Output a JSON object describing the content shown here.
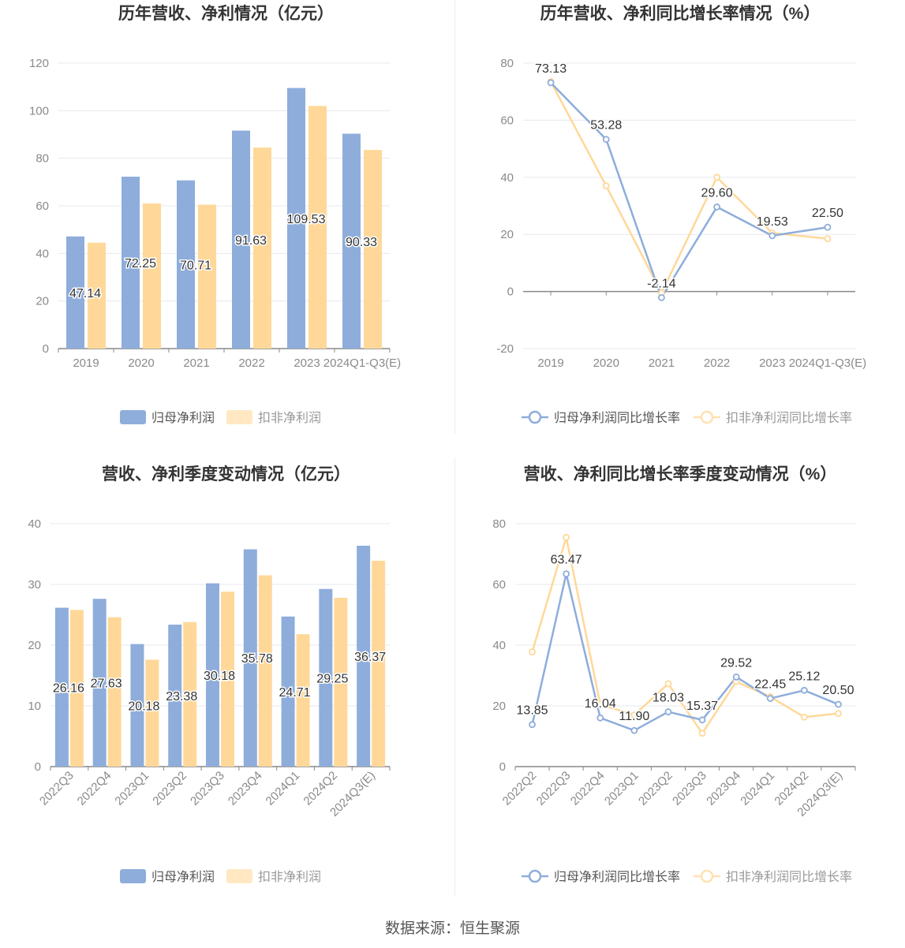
{
  "footer": "数据来源：恒生聚源",
  "colors": {
    "series1": "#8eaddb",
    "series2": "#ffd899",
    "axis": "#888888",
    "grid": "#e6e8ef",
    "text": "#333333",
    "tick": "#8a8a8a"
  },
  "chart_data": [
    {
      "type": "bar",
      "title": "历年营收、净利情况（亿元）",
      "categories": [
        "2019",
        "2020",
        "2021",
        "2022",
        "2023",
        "2024Q1-Q3(E)"
      ],
      "series": [
        {
          "name": "归母净利润",
          "values": [
            47.14,
            72.25,
            70.71,
            91.63,
            109.53,
            90.33
          ],
          "labels": [
            "47.14",
            "72.25",
            "70.71",
            "91.63",
            "109.53",
            "90.33"
          ]
        },
        {
          "name": "扣非净利润",
          "values": [
            44.5,
            61.0,
            60.5,
            84.5,
            102.0,
            83.5
          ]
        }
      ],
      "ylim": [
        0,
        120
      ],
      "yticks": [
        "0",
        "20",
        "40",
        "60",
        "80",
        "100",
        "120"
      ],
      "legend": "bottom-center",
      "grid": true
    },
    {
      "type": "line",
      "title": "历年营收、净利同比增长率情况（%）",
      "categories": [
        "2019",
        "2020",
        "2021",
        "2022",
        "2023",
        "2024Q1-Q3(E)"
      ],
      "series": [
        {
          "name": "归母净利润同比增长率",
          "values": [
            73.13,
            53.28,
            -2.14,
            29.6,
            19.53,
            22.5
          ],
          "labels": [
            "73.13",
            "53.28",
            "-2.14",
            "29.60",
            "19.53",
            "22.50"
          ]
        },
        {
          "name": "扣非净利润同比增长率",
          "values": [
            73.5,
            37.0,
            -0.5,
            40.0,
            20.5,
            18.5
          ]
        }
      ],
      "ylim": [
        -20,
        80
      ],
      "yticks": [
        "-20",
        "0",
        "20",
        "40",
        "60",
        "80"
      ],
      "legend": "bottom-center",
      "grid": true
    },
    {
      "type": "bar",
      "title": "营收、净利季度变动情况（亿元）",
      "categories": [
        "2022Q3",
        "2022Q4",
        "2023Q1",
        "2023Q2",
        "2023Q3",
        "2023Q4",
        "2024Q1",
        "2024Q2",
        "2024Q3(E)"
      ],
      "series": [
        {
          "name": "归母净利润",
          "values": [
            26.16,
            27.63,
            20.18,
            23.38,
            30.18,
            35.78,
            24.71,
            29.25,
            36.37
          ],
          "labels": [
            "26.16",
            "27.63",
            "20.18",
            "23.38",
            "30.18",
            "35.78",
            "24.71",
            "29.25",
            "36.37"
          ]
        },
        {
          "name": "扣非净利润",
          "values": [
            25.8,
            24.6,
            17.6,
            23.8,
            28.8,
            31.5,
            21.8,
            27.8,
            33.9
          ]
        }
      ],
      "ylim": [
        0,
        40
      ],
      "yticks": [
        "0",
        "10",
        "20",
        "30",
        "40"
      ],
      "legend": "bottom-center",
      "grid": true
    },
    {
      "type": "line",
      "title": "营收、净利同比增长率季度变动情况（%）",
      "categories": [
        "2022Q2",
        "2022Q3",
        "2022Q4",
        "2023Q1",
        "2023Q2",
        "2023Q3",
        "2023Q4",
        "2024Q1",
        "2024Q2",
        "2024Q3(E)"
      ],
      "series": [
        {
          "name": "归母净利润同比增长率",
          "values": [
            13.85,
            63.47,
            16.04,
            11.9,
            18.03,
            15.37,
            29.52,
            22.45,
            25.12,
            20.5
          ],
          "labels": [
            "13.85",
            "63.47",
            "16.04",
            "11.90",
            "18.03",
            "15.37",
            "29.52",
            "22.45",
            "25.12",
            "20.50"
          ]
        },
        {
          "name": "扣非净利润同比增长率",
          "values": [
            37.8,
            75.5,
            20.5,
            17.0,
            27.3,
            11.0,
            28.0,
            23.0,
            16.3,
            17.5
          ]
        }
      ],
      "ylim": [
        0,
        80
      ],
      "yticks": [
        "0",
        "20",
        "40",
        "60",
        "80"
      ],
      "legend": "bottom-center",
      "grid": true
    }
  ]
}
